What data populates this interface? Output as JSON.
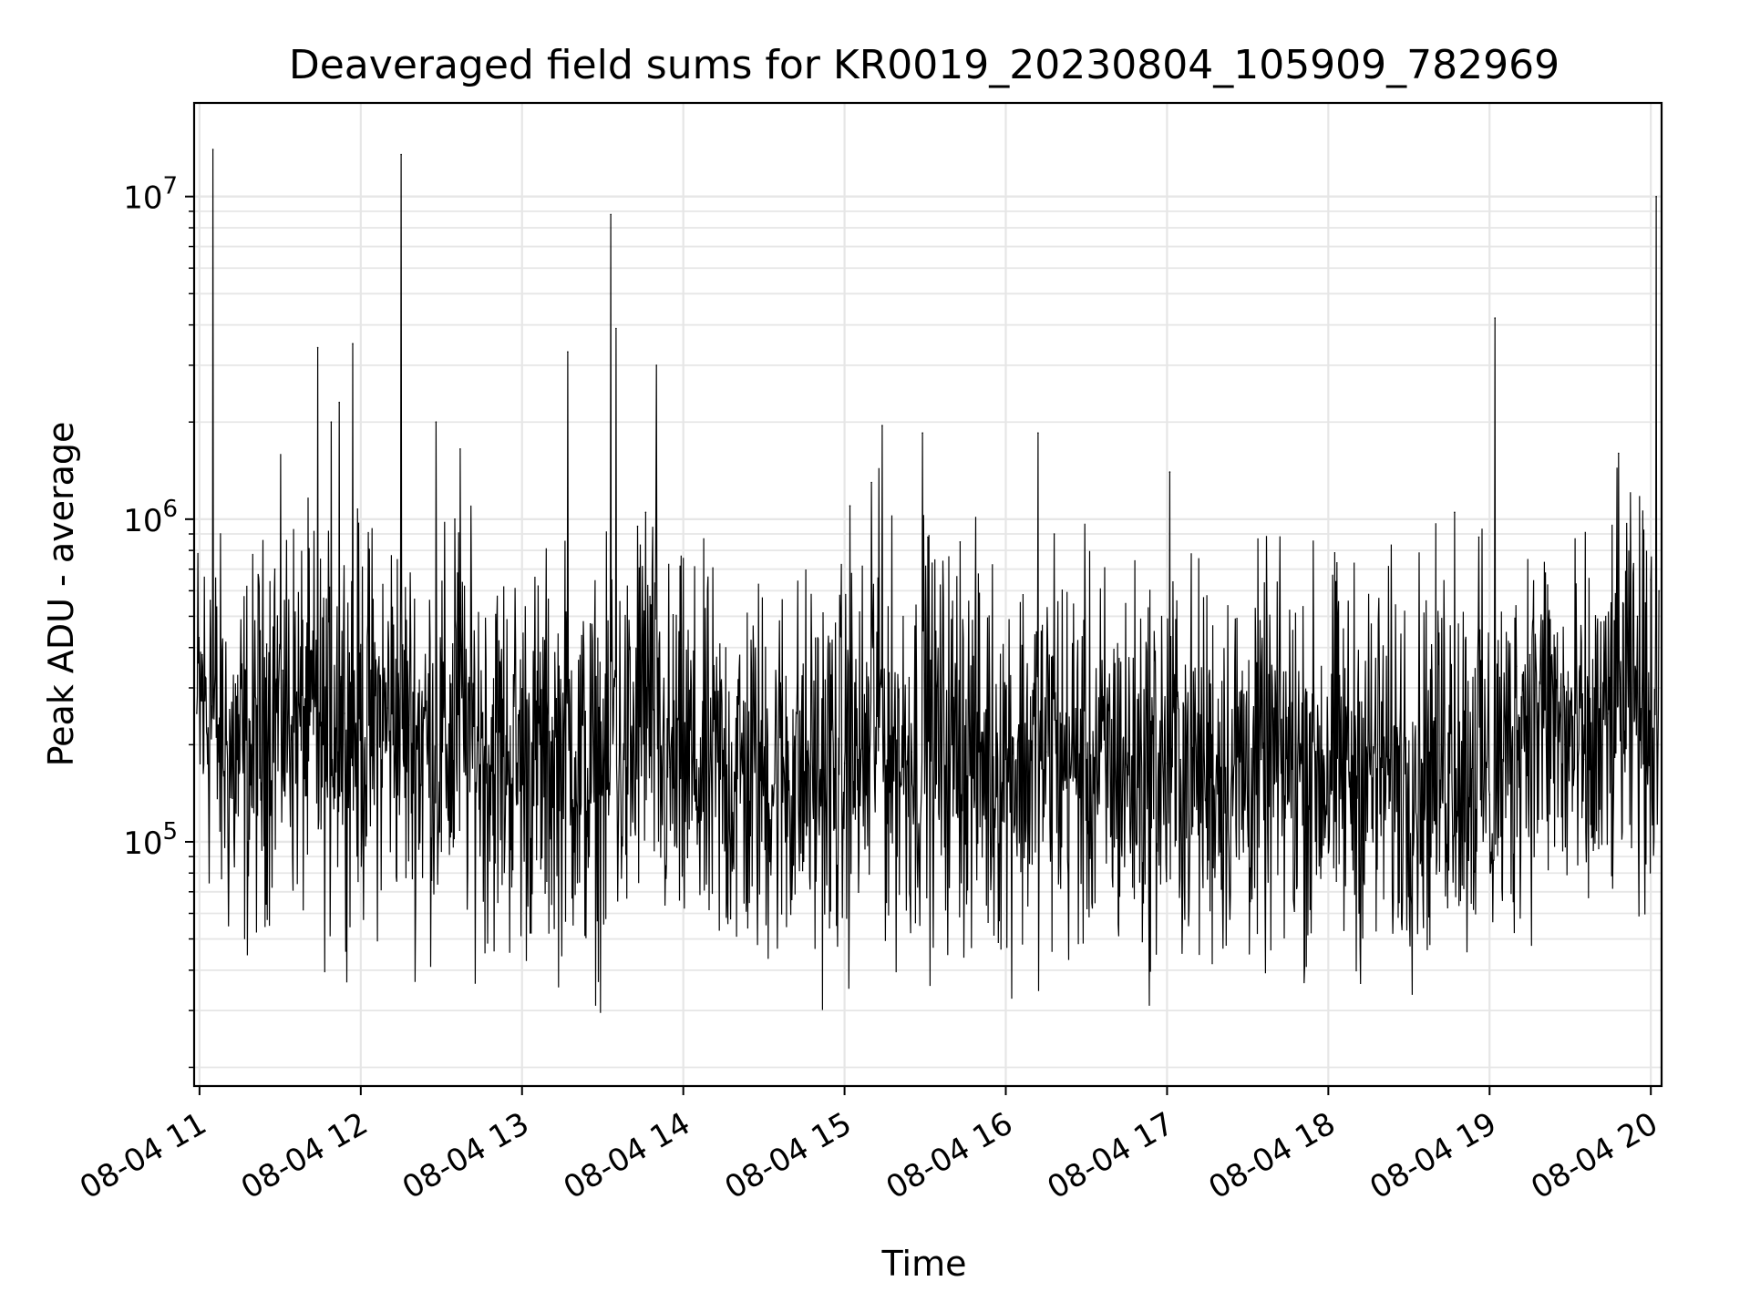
{
  "chart_data": {
    "type": "line",
    "title": "Deaveraged field sums for KR0019_20230804_105909_782969",
    "xlabel": "Time",
    "ylabel": "Peak ADU - average",
    "yscale": "log",
    "ylim": [
      17500,
      19500000
    ],
    "xlim": [
      "2023-08-04 10:58",
      "2023-08-04 20:04"
    ],
    "x_ticks": [
      "08-04 11",
      "08-04 12",
      "08-04 13",
      "08-04 14",
      "08-04 15",
      "08-04 16",
      "08-04 17",
      "08-04 18",
      "08-04 19",
      "08-04 20"
    ],
    "y_ticks": [
      {
        "base": "10",
        "exp": "5",
        "value": 100000
      },
      {
        "base": "10",
        "exp": "6",
        "value": 1000000
      },
      {
        "base": "10",
        "exp": "7",
        "value": 10000000
      }
    ],
    "grid": true,
    "series": [
      {
        "color": "#000000",
        "points": [
          [
            "2023-08-04 10:59",
            250000
          ],
          [
            "2023-08-04 11:01",
            380000
          ],
          [
            "2023-08-04 11:04",
            560000
          ],
          [
            "2023-08-04 11:05",
            14000000
          ],
          [
            "2023-08-04 11:07",
            230000
          ],
          [
            "2023-08-04 11:10",
            200000
          ],
          [
            "2023-08-04 11:14",
            180000
          ],
          [
            "2023-08-04 11:20",
            210000
          ],
          [
            "2023-08-04 11:25",
            410000
          ],
          [
            "2023-08-04 11:28",
            700000
          ],
          [
            "2023-08-04 11:31",
            340000
          ],
          [
            "2023-08-04 11:36",
            260000
          ],
          [
            "2023-08-04 11:41",
            230000
          ],
          [
            "2023-08-04 11:44",
            3400000
          ],
          [
            "2023-08-04 11:46",
            200000
          ],
          [
            "2023-08-04 11:49",
            2000000
          ],
          [
            "2023-08-04 11:52",
            2300000
          ],
          [
            "2023-08-04 11:54",
            250000
          ],
          [
            "2023-08-04 11:57",
            3500000
          ],
          [
            "2023-08-04 12:03",
            230000
          ],
          [
            "2023-08-04 12:10",
            260000
          ],
          [
            "2023-08-04 12:15",
            13500000
          ],
          [
            "2023-08-04 12:18",
            230000
          ],
          [
            "2023-08-04 12:25",
            210000
          ],
          [
            "2023-08-04 12:28",
            2000000
          ],
          [
            "2023-08-04 12:32",
            200000
          ],
          [
            "2023-08-04 12:35",
            1000000
          ],
          [
            "2023-08-04 12:37",
            1650000
          ],
          [
            "2023-08-04 12:45",
            210000
          ],
          [
            "2023-08-04 12:55",
            190000
          ],
          [
            "2023-08-04 13:05",
            180000
          ],
          [
            "2023-08-04 13:15",
            200000
          ],
          [
            "2023-08-04 13:17",
            3300000
          ],
          [
            "2023-08-04 13:20",
            190000
          ],
          [
            "2023-08-04 13:30",
            160000
          ],
          [
            "2023-08-04 13:33",
            8800000
          ],
          [
            "2023-08-04 13:35",
            3900000
          ],
          [
            "2023-08-04 13:38",
            180000
          ],
          [
            "2023-08-04 13:43",
            950000
          ],
          [
            "2023-08-04 13:46",
            1050000
          ],
          [
            "2023-08-04 13:50",
            3000000
          ],
          [
            "2023-08-04 13:55",
            170000
          ],
          [
            "2023-08-04 14:05",
            180000
          ],
          [
            "2023-08-04 14:15",
            160000
          ],
          [
            "2023-08-04 14:30",
            170000
          ],
          [
            "2023-08-04 14:45",
            165000
          ],
          [
            "2023-08-04 15:00",
            175000
          ],
          [
            "2023-08-04 15:02",
            1100000
          ],
          [
            "2023-08-04 15:05",
            180000
          ],
          [
            "2023-08-04 15:10",
            1300000
          ],
          [
            "2023-08-04 15:14",
            1950000
          ],
          [
            "2023-08-04 15:18",
            200000
          ],
          [
            "2023-08-04 15:25",
            190000
          ],
          [
            "2023-08-04 15:29",
            1850000
          ],
          [
            "2023-08-04 15:31",
            880000
          ],
          [
            "2023-08-04 15:40",
            200000
          ],
          [
            "2023-08-04 15:43",
            850000
          ],
          [
            "2023-08-04 15:50",
            190000
          ],
          [
            "2023-08-04 16:00",
            180000
          ],
          [
            "2023-08-04 16:12",
            1850000
          ],
          [
            "2023-08-04 16:15",
            190000
          ],
          [
            "2023-08-04 16:18",
            900000
          ],
          [
            "2023-08-04 16:30",
            180000
          ],
          [
            "2023-08-04 16:45",
            170000
          ],
          [
            "2023-08-04 17:00",
            175000
          ],
          [
            "2023-08-04 17:01",
            1400000
          ],
          [
            "2023-08-04 17:05",
            180000
          ],
          [
            "2023-08-04 17:20",
            170000
          ],
          [
            "2023-08-04 17:35",
            180000
          ],
          [
            "2023-08-04 17:50",
            175000
          ],
          [
            "2023-08-04 18:05",
            180000
          ],
          [
            "2023-08-04 18:20",
            170000
          ],
          [
            "2023-08-04 18:35",
            175000
          ],
          [
            "2023-08-04 18:42",
            200000
          ],
          [
            "2023-08-04 18:47",
            1050000
          ],
          [
            "2023-08-04 18:50",
            180000
          ],
          [
            "2023-08-04 18:56",
            880000
          ],
          [
            "2023-08-04 18:59",
            170000
          ],
          [
            "2023-08-04 19:00",
            140000
          ],
          [
            "2023-08-04 19:02",
            4200000
          ],
          [
            "2023-08-04 19:05",
            180000
          ],
          [
            "2023-08-04 19:10",
            350000
          ],
          [
            "2023-08-04 19:15",
            380000
          ],
          [
            "2023-08-04 19:20",
            250000
          ],
          [
            "2023-08-04 19:25",
            300000
          ],
          [
            "2023-08-04 19:28",
            200000
          ],
          [
            "2023-08-04 19:32",
            250000
          ],
          [
            "2023-08-04 19:35",
            180000
          ],
          [
            "2023-08-04 19:39",
            300000
          ],
          [
            "2023-08-04 19:42",
            200000
          ],
          [
            "2023-08-04 19:44",
            250000
          ],
          [
            "2023-08-04 19:48",
            1600000
          ],
          [
            "2023-08-04 19:52",
            400000
          ],
          [
            "2023-08-04 19:55",
            500000
          ],
          [
            "2023-08-04 19:58",
            550000
          ],
          [
            "2023-08-04 20:00",
            650000
          ],
          [
            "2023-08-04 20:02",
            10000000
          ],
          [
            "2023-08-04 20:03",
            600000
          ]
        ]
      }
    ]
  }
}
